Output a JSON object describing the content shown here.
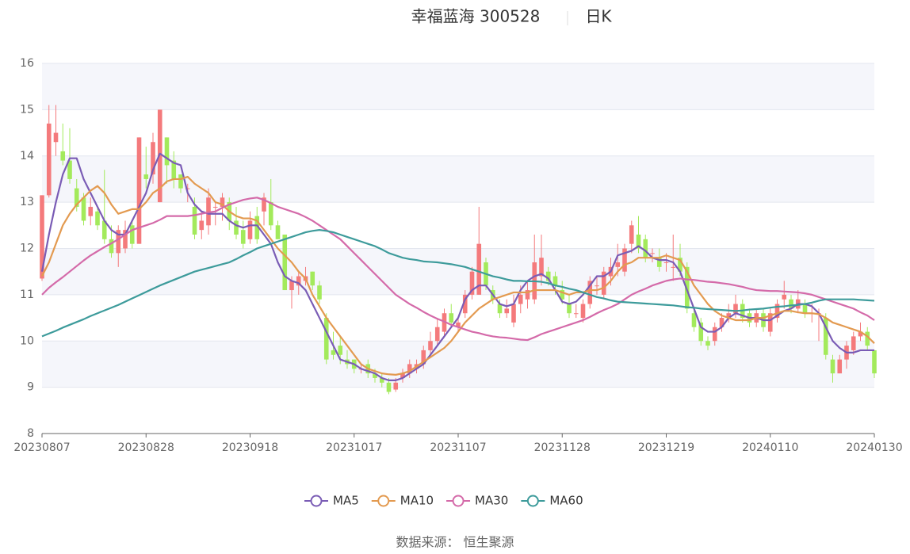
{
  "chart_data": {
    "type": "candlestick",
    "title": "幸福蓝海 300528",
    "period": "日K",
    "source": "数据来源： 恒生聚源",
    "ylim": [
      8,
      16
    ],
    "yticks": [
      8,
      9,
      10,
      11,
      12,
      13,
      14,
      15,
      16
    ],
    "grid": true,
    "legend": "bottom",
    "up_color": "#f47a7c",
    "down_color": "#a3ea5b",
    "categories": [
      "20230807",
      null,
      null,
      null,
      null,
      null,
      null,
      null,
      null,
      null,
      null,
      null,
      null,
      null,
      null,
      "20230828",
      null,
      null,
      null,
      null,
      null,
      null,
      null,
      null,
      null,
      null,
      null,
      null,
      null,
      null,
      "20230918",
      null,
      null,
      null,
      null,
      null,
      null,
      null,
      null,
      null,
      null,
      null,
      null,
      null,
      null,
      "20231017",
      null,
      null,
      null,
      null,
      null,
      null,
      null,
      null,
      null,
      null,
      null,
      null,
      null,
      null,
      "20231107",
      null,
      null,
      null,
      null,
      null,
      null,
      null,
      null,
      null,
      null,
      null,
      null,
      null,
      null,
      "20231128",
      null,
      null,
      null,
      null,
      null,
      null,
      null,
      null,
      null,
      null,
      null,
      null,
      null,
      null,
      "20231219",
      null,
      null,
      null,
      null,
      null,
      null,
      null,
      null,
      null,
      null,
      null,
      null,
      null,
      null,
      "20240110",
      null,
      null,
      null,
      null,
      null,
      null,
      null,
      null,
      null,
      null,
      null,
      null,
      null,
      null,
      "20240130"
    ],
    "open_close_low_high": [
      [
        11.35,
        13.15,
        11.3,
        13.15
      ],
      [
        13.15,
        14.7,
        13.1,
        15.1
      ],
      [
        14.3,
        14.5,
        14.0,
        15.1
      ],
      [
        14.1,
        13.9,
        13.8,
        14.7
      ],
      [
        13.9,
        13.5,
        13.4,
        14.6
      ],
      [
        13.3,
        12.9,
        12.8,
        13.5
      ],
      [
        13.1,
        12.6,
        12.5,
        13.2
      ],
      [
        12.7,
        12.9,
        12.5,
        13.1
      ],
      [
        12.8,
        12.5,
        12.4,
        12.9
      ],
      [
        12.6,
        12.2,
        12.1,
        13.7
      ],
      [
        12.2,
        11.9,
        11.8,
        12.5
      ],
      [
        11.9,
        12.4,
        11.6,
        12.5
      ],
      [
        12.0,
        12.4,
        11.9,
        12.6
      ],
      [
        12.5,
        12.1,
        12.0,
        12.6
      ],
      [
        12.1,
        14.4,
        12.1,
        14.4
      ],
      [
        13.6,
        13.5,
        13.3,
        14.2
      ],
      [
        13.6,
        14.3,
        13.4,
        14.5
      ],
      [
        13.0,
        15.0,
        13.0,
        15.0
      ],
      [
        14.4,
        13.8,
        13.4,
        14.4
      ],
      [
        13.9,
        13.5,
        13.3,
        14.1
      ],
      [
        13.6,
        13.3,
        13.2,
        13.6
      ],
      [
        13.3,
        13.3,
        13.0,
        13.4
      ],
      [
        12.9,
        12.3,
        12.2,
        13.1
      ],
      [
        12.4,
        12.6,
        12.2,
        12.8
      ],
      [
        12.5,
        13.1,
        12.3,
        13.3
      ],
      [
        12.9,
        12.9,
        12.5,
        13.0
      ],
      [
        12.9,
        13.1,
        12.6,
        13.2
      ],
      [
        13.0,
        12.6,
        12.4,
        13.1
      ],
      [
        12.6,
        12.3,
        12.2,
        12.9
      ],
      [
        12.4,
        12.1,
        12.0,
        12.6
      ],
      [
        12.2,
        12.6,
        12.1,
        12.8
      ],
      [
        12.7,
        12.2,
        12.1,
        12.9
      ],
      [
        12.8,
        13.1,
        12.5,
        13.2
      ],
      [
        13.0,
        12.5,
        12.4,
        13.5
      ],
      [
        12.5,
        12.2,
        12.2,
        12.6
      ],
      [
        12.3,
        11.1,
        11.1,
        12.3
      ],
      [
        11.1,
        11.3,
        10.7,
        11.4
      ],
      [
        11.2,
        11.4,
        11.0,
        11.5
      ],
      [
        11.3,
        11.4,
        11.2,
        11.6
      ],
      [
        11.5,
        11.2,
        11.1,
        11.5
      ],
      [
        11.2,
        10.9,
        10.8,
        11.3
      ],
      [
        10.5,
        9.6,
        9.5,
        10.6
      ],
      [
        9.8,
        9.7,
        9.6,
        10.2
      ],
      [
        9.9,
        9.7,
        9.5,
        10.1
      ],
      [
        9.6,
        9.5,
        9.4,
        9.8
      ],
      [
        9.6,
        9.4,
        9.3,
        9.6
      ],
      [
        9.4,
        9.4,
        9.3,
        9.5
      ],
      [
        9.5,
        9.3,
        9.2,
        9.6
      ],
      [
        9.3,
        9.2,
        9.1,
        9.4
      ],
      [
        9.2,
        9.1,
        9.0,
        9.3
      ],
      [
        9.1,
        8.9,
        8.85,
        9.2
      ],
      [
        8.95,
        9.1,
        8.9,
        9.2
      ],
      [
        9.2,
        9.3,
        9.1,
        9.4
      ],
      [
        9.3,
        9.5,
        9.2,
        9.6
      ],
      [
        9.4,
        9.5,
        9.3,
        9.6
      ],
      [
        9.5,
        9.8,
        9.4,
        9.9
      ],
      [
        9.8,
        10.0,
        9.7,
        10.2
      ],
      [
        10.0,
        10.3,
        9.9,
        10.5
      ],
      [
        10.2,
        10.6,
        10.1,
        10.7
      ],
      [
        10.6,
        10.4,
        10.3,
        10.8
      ],
      [
        10.3,
        10.4,
        10.2,
        10.5
      ],
      [
        10.6,
        11.0,
        10.5,
        11.1
      ],
      [
        11.0,
        11.5,
        10.9,
        11.6
      ],
      [
        11.0,
        12.1,
        11.0,
        12.9
      ],
      [
        11.7,
        11.2,
        11.1,
        11.8
      ],
      [
        11.1,
        10.9,
        10.8,
        11.2
      ],
      [
        10.8,
        10.6,
        10.5,
        10.9
      ],
      [
        10.6,
        10.7,
        10.5,
        10.9
      ],
      [
        10.4,
        10.8,
        10.3,
        11.0
      ],
      [
        10.8,
        11.0,
        10.6,
        11.2
      ],
      [
        10.9,
        11.1,
        10.7,
        11.3
      ],
      [
        10.9,
        11.7,
        10.8,
        12.3
      ],
      [
        11.4,
        11.8,
        11.2,
        12.3
      ],
      [
        11.5,
        11.3,
        11.2,
        11.6
      ],
      [
        11.4,
        11.2,
        11.0,
        11.5
      ],
      [
        11.1,
        10.9,
        10.8,
        11.3
      ],
      [
        10.8,
        10.6,
        10.5,
        11.0
      ],
      [
        10.6,
        10.6,
        10.5,
        10.8
      ],
      [
        10.5,
        10.8,
        10.4,
        10.9
      ],
      [
        10.8,
        11.3,
        10.7,
        11.4
      ],
      [
        11.2,
        11.2,
        11.0,
        11.4
      ],
      [
        11.0,
        11.5,
        10.9,
        11.6
      ],
      [
        11.4,
        11.6,
        11.2,
        11.8
      ],
      [
        11.6,
        11.7,
        11.4,
        12.1
      ],
      [
        11.5,
        12.0,
        11.4,
        12.1
      ],
      [
        12.1,
        12.5,
        11.9,
        12.6
      ],
      [
        12.3,
        12.0,
        11.9,
        12.7
      ],
      [
        12.2,
        11.8,
        11.7,
        12.3
      ],
      [
        11.9,
        11.9,
        11.7,
        12.0
      ],
      [
        11.8,
        11.6,
        11.5,
        12.0
      ],
      [
        11.7,
        11.7,
        11.5,
        11.9
      ],
      [
        11.6,
        11.6,
        11.3,
        12.3
      ],
      [
        11.8,
        11.5,
        11.4,
        12.1
      ],
      [
        11.6,
        10.7,
        10.6,
        11.7
      ],
      [
        10.6,
        10.3,
        10.2,
        10.7
      ],
      [
        10.4,
        10.0,
        9.9,
        10.5
      ],
      [
        10.0,
        9.9,
        9.8,
        10.1
      ],
      [
        10.0,
        10.3,
        9.9,
        10.4
      ],
      [
        10.3,
        10.5,
        10.2,
        10.6
      ],
      [
        10.5,
        10.6,
        10.4,
        10.8
      ],
      [
        10.6,
        10.8,
        10.5,
        11.0
      ],
      [
        10.8,
        10.5,
        10.4,
        10.9
      ],
      [
        10.6,
        10.4,
        10.3,
        10.7
      ],
      [
        10.4,
        10.6,
        10.3,
        10.7
      ],
      [
        10.6,
        10.3,
        10.2,
        10.7
      ],
      [
        10.2,
        10.6,
        10.1,
        10.7
      ],
      [
        10.5,
        10.8,
        10.4,
        10.9
      ],
      [
        10.9,
        11.0,
        10.7,
        11.3
      ],
      [
        10.9,
        10.7,
        10.6,
        11.0
      ],
      [
        10.7,
        10.9,
        10.6,
        11.1
      ],
      [
        10.8,
        10.6,
        10.5,
        10.9
      ],
      [
        10.6,
        10.6,
        10.4,
        10.8
      ],
      [
        10.6,
        10.6,
        10.0,
        10.7
      ],
      [
        10.5,
        9.7,
        9.6,
        10.6
      ],
      [
        9.6,
        9.3,
        9.1,
        9.7
      ],
      [
        9.3,
        9.6,
        9.3,
        9.7
      ],
      [
        9.6,
        9.9,
        9.4,
        10.0
      ],
      [
        9.8,
        10.1,
        9.7,
        10.2
      ],
      [
        10.1,
        10.2,
        10.0,
        10.4
      ],
      [
        10.2,
        9.9,
        9.8,
        10.3
      ],
      [
        9.8,
        9.3,
        9.2,
        9.8
      ]
    ],
    "series": [
      {
        "name": "MA5",
        "color": "#7a5cb5",
        "values": [
          11.5,
          12.3,
          13.0,
          13.6,
          13.95,
          13.95,
          13.5,
          13.2,
          12.9,
          12.6,
          12.4,
          12.3,
          12.3,
          12.6,
          12.9,
          13.2,
          13.7,
          14.05,
          13.95,
          13.85,
          13.8,
          13.2,
          12.95,
          12.8,
          12.75,
          12.75,
          12.75,
          12.6,
          12.5,
          12.45,
          12.5,
          12.5,
          12.3,
          12.1,
          11.7,
          11.4,
          11.3,
          11.25,
          11.1,
          10.8,
          10.5,
          10.2,
          9.9,
          9.6,
          9.55,
          9.5,
          9.4,
          9.35,
          9.3,
          9.2,
          9.15,
          9.15,
          9.2,
          9.3,
          9.4,
          9.5,
          9.7,
          9.9,
          10.1,
          10.3,
          10.5,
          10.9,
          11.1,
          11.2,
          11.2,
          11.0,
          10.8,
          10.75,
          10.8,
          11.1,
          11.3,
          11.4,
          11.45,
          11.35,
          11.1,
          10.85,
          10.8,
          10.85,
          11.0,
          11.2,
          11.4,
          11.4,
          11.5,
          11.85,
          11.9,
          11.95,
          12.05,
          11.95,
          11.8,
          11.75,
          11.75,
          11.7,
          11.5,
          11.1,
          10.7,
          10.3,
          10.2,
          10.2,
          10.3,
          10.5,
          10.6,
          10.55,
          10.5,
          10.5,
          10.45,
          10.45,
          10.55,
          10.65,
          10.7,
          10.8,
          10.8,
          10.75,
          10.6,
          10.3,
          10.0,
          9.85,
          9.75,
          9.75,
          9.8,
          9.8,
          9.8
        ]
      },
      {
        "name": "MA10",
        "color": "#e39a50",
        "values": [
          11.4,
          11.7,
          12.1,
          12.5,
          12.75,
          12.95,
          13.1,
          13.25,
          13.35,
          13.2,
          12.95,
          12.75,
          12.8,
          12.85,
          12.85,
          13.0,
          13.2,
          13.3,
          13.45,
          13.5,
          13.5,
          13.55,
          13.4,
          13.3,
          13.2,
          13.0,
          12.95,
          12.8,
          12.7,
          12.65,
          12.65,
          12.6,
          12.4,
          12.2,
          12.0,
          11.85,
          11.7,
          11.5,
          11.35,
          11.0,
          10.75,
          10.5,
          10.3,
          10.1,
          9.9,
          9.7,
          9.5,
          9.4,
          9.35,
          9.3,
          9.28,
          9.27,
          9.3,
          9.35,
          9.45,
          9.55,
          9.65,
          9.75,
          9.85,
          10.0,
          10.2,
          10.4,
          10.55,
          10.7,
          10.8,
          10.9,
          10.95,
          11.0,
          11.05,
          11.05,
          11.05,
          11.1,
          11.1,
          11.1,
          11.1,
          11.05,
          11.0,
          11.05,
          11.05,
          11.1,
          11.1,
          11.15,
          11.3,
          11.5,
          11.65,
          11.7,
          11.8,
          11.8,
          11.8,
          11.8,
          11.85,
          11.8,
          11.75,
          11.5,
          11.2,
          11.0,
          10.8,
          10.65,
          10.55,
          10.5,
          10.45,
          10.45,
          10.45,
          10.5,
          10.5,
          10.55,
          10.6,
          10.65,
          10.65,
          10.62,
          10.6,
          10.6,
          10.58,
          10.5,
          10.4,
          10.35,
          10.3,
          10.25,
          10.2,
          10.1,
          9.95
        ]
      },
      {
        "name": "MA30",
        "color": "#d46aa9",
        "values": [
          11.0,
          11.15,
          11.27,
          11.38,
          11.5,
          11.62,
          11.74,
          11.85,
          11.94,
          12.03,
          12.11,
          12.2,
          12.3,
          12.4,
          12.45,
          12.5,
          12.55,
          12.62,
          12.7,
          12.7,
          12.7,
          12.7,
          12.72,
          12.75,
          12.78,
          12.8,
          12.88,
          12.95,
          13.0,
          13.05,
          13.08,
          13.1,
          13.05,
          12.98,
          12.9,
          12.85,
          12.8,
          12.75,
          12.68,
          12.6,
          12.5,
          12.4,
          12.3,
          12.2,
          12.05,
          11.9,
          11.75,
          11.6,
          11.45,
          11.3,
          11.15,
          11.0,
          10.9,
          10.8,
          10.72,
          10.63,
          10.55,
          10.48,
          10.42,
          10.35,
          10.3,
          10.25,
          10.2,
          10.17,
          10.13,
          10.1,
          10.08,
          10.07,
          10.05,
          10.03,
          10.02,
          10.08,
          10.15,
          10.2,
          10.25,
          10.3,
          10.35,
          10.4,
          10.45,
          10.52,
          10.6,
          10.67,
          10.73,
          10.8,
          10.9,
          11.0,
          11.07,
          11.13,
          11.2,
          11.25,
          11.3,
          11.33,
          11.35,
          11.33,
          11.32,
          11.3,
          11.28,
          11.27,
          11.25,
          11.23,
          11.2,
          11.17,
          11.13,
          11.1,
          11.09,
          11.08,
          11.08,
          11.07,
          11.06,
          11.05,
          11.03,
          11.0,
          10.95,
          10.9,
          10.85,
          10.8,
          10.75,
          10.7,
          10.62,
          10.55,
          10.45
        ]
      },
      {
        "name": "MA60",
        "color": "#3d9b9b",
        "values": [
          10.1,
          10.16,
          10.22,
          10.29,
          10.35,
          10.41,
          10.47,
          10.54,
          10.6,
          10.66,
          10.72,
          10.78,
          10.85,
          10.92,
          10.99,
          11.06,
          11.13,
          11.2,
          11.26,
          11.32,
          11.38,
          11.44,
          11.5,
          11.54,
          11.58,
          11.62,
          11.66,
          11.7,
          11.77,
          11.85,
          11.92,
          12.0,
          12.05,
          12.1,
          12.15,
          12.2,
          12.25,
          12.3,
          12.35,
          12.38,
          12.4,
          12.38,
          12.35,
          12.3,
          12.25,
          12.2,
          12.15,
          12.1,
          12.05,
          11.98,
          11.9,
          11.85,
          11.8,
          11.77,
          11.75,
          11.72,
          11.71,
          11.7,
          11.68,
          11.66,
          11.63,
          11.6,
          11.55,
          11.5,
          11.45,
          11.4,
          11.37,
          11.33,
          11.3,
          11.3,
          11.29,
          11.29,
          11.28,
          11.25,
          11.2,
          11.17,
          11.13,
          11.1,
          11.05,
          11.0,
          10.95,
          10.92,
          10.88,
          10.85,
          10.84,
          10.83,
          10.82,
          10.81,
          10.8,
          10.79,
          10.78,
          10.77,
          10.75,
          10.73,
          10.72,
          10.7,
          10.69,
          10.68,
          10.67,
          10.66,
          10.65,
          10.66,
          10.68,
          10.69,
          10.7,
          10.72,
          10.74,
          10.75,
          10.77,
          10.78,
          10.8,
          10.83,
          10.87,
          10.9,
          10.9,
          10.9,
          10.9,
          10.9,
          10.89,
          10.88,
          10.87
        ]
      }
    ]
  }
}
